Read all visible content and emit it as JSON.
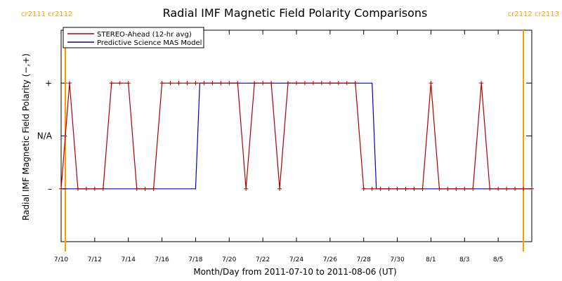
{
  "chart_data": {
    "type": "line",
    "title": "Radial IMF Magnetic Field Polarity Comparisons",
    "xlabel": "Month/Day from 2011-07-10 to 2011-08-06 (UT)",
    "ylabel": "Radial IMF Magnetic Field Polarity (−,+)",
    "x_range": [
      "2011-07-10",
      "2011-08-06"
    ],
    "x_ticks": [
      {
        "date": "2011-07-10",
        "label": "7/10"
      },
      {
        "date": "2011-07-12",
        "label": "7/12"
      },
      {
        "date": "2011-07-14",
        "label": "7/14"
      },
      {
        "date": "2011-07-16",
        "label": "7/16"
      },
      {
        "date": "2011-07-18",
        "label": "7/18"
      },
      {
        "date": "2011-07-20",
        "label": "7/20"
      },
      {
        "date": "2011-07-22",
        "label": "7/22"
      },
      {
        "date": "2011-07-24",
        "label": "7/24"
      },
      {
        "date": "2011-07-26",
        "label": "7/26"
      },
      {
        "date": "2011-07-28",
        "label": "7/28"
      },
      {
        "date": "2011-07-30",
        "label": "7/30"
      },
      {
        "date": "2011-08-01",
        "label": "8/1"
      },
      {
        "date": "2011-08-03",
        "label": "8/3"
      },
      {
        "date": "2011-08-05",
        "label": "8/5"
      }
    ],
    "y_ticks": [
      {
        "value": 1,
        "label": "+"
      },
      {
        "value": 0,
        "label": "N/A"
      },
      {
        "value": -1,
        "label": "–"
      }
    ],
    "y_range": [
      -2,
      2
    ],
    "carrington_markers": [
      {
        "date": "2011-07-10T06:00",
        "label": "cr2111 cr2112",
        "position": "left"
      },
      {
        "date": "2011-08-06T12:00",
        "label": "cr2112 cr2113",
        "position": "right"
      }
    ],
    "legend": {
      "placement": "top-left"
    },
    "series": [
      {
        "name": "STEREO-Ahead (12-hr avg)",
        "color": "#b00000",
        "marker": "plus",
        "points": [
          [
            "2011-07-10T00:00",
            -1
          ],
          [
            "2011-07-10T12:00",
            1
          ],
          [
            "2011-07-11T00:00",
            -1
          ],
          [
            "2011-07-11T12:00",
            -1
          ],
          [
            "2011-07-12T00:00",
            -1
          ],
          [
            "2011-07-12T12:00",
            -1
          ],
          [
            "2011-07-13T00:00",
            1
          ],
          [
            "2011-07-13T12:00",
            1
          ],
          [
            "2011-07-14T00:00",
            1
          ],
          [
            "2011-07-14T12:00",
            -1
          ],
          [
            "2011-07-15T00:00",
            -1
          ],
          [
            "2011-07-15T12:00",
            -1
          ],
          [
            "2011-07-16T00:00",
            1
          ],
          [
            "2011-07-16T12:00",
            1
          ],
          [
            "2011-07-17T00:00",
            1
          ],
          [
            "2011-07-17T12:00",
            1
          ],
          [
            "2011-07-18T00:00",
            1
          ],
          [
            "2011-07-18T12:00",
            1
          ],
          [
            "2011-07-19T00:00",
            1
          ],
          [
            "2011-07-19T12:00",
            1
          ],
          [
            "2011-07-20T00:00",
            1
          ],
          [
            "2011-07-20T12:00",
            1
          ],
          [
            "2011-07-21T00:00",
            -1
          ],
          [
            "2011-07-21T12:00",
            1
          ],
          [
            "2011-07-22T00:00",
            1
          ],
          [
            "2011-07-22T12:00",
            1
          ],
          [
            "2011-07-23T00:00",
            -1
          ],
          [
            "2011-07-23T12:00",
            1
          ],
          [
            "2011-07-24T00:00",
            1
          ],
          [
            "2011-07-24T12:00",
            1
          ],
          [
            "2011-07-25T00:00",
            1
          ],
          [
            "2011-07-25T12:00",
            1
          ],
          [
            "2011-07-26T00:00",
            1
          ],
          [
            "2011-07-26T12:00",
            1
          ],
          [
            "2011-07-27T00:00",
            1
          ],
          [
            "2011-07-27T12:00",
            1
          ],
          [
            "2011-07-28T00:00",
            -1
          ],
          [
            "2011-07-28T12:00",
            -1
          ],
          [
            "2011-07-29T00:00",
            -1
          ],
          [
            "2011-07-29T12:00",
            -1
          ],
          [
            "2011-07-30T00:00",
            -1
          ],
          [
            "2011-07-30T12:00",
            -1
          ],
          [
            "2011-07-31T00:00",
            -1
          ],
          [
            "2011-07-31T12:00",
            -1
          ],
          [
            "2011-08-01T00:00",
            1
          ],
          [
            "2011-08-01T12:00",
            -1
          ],
          [
            "2011-08-02T00:00",
            -1
          ],
          [
            "2011-08-02T12:00",
            -1
          ],
          [
            "2011-08-03T00:00",
            -1
          ],
          [
            "2011-08-03T12:00",
            -1
          ],
          [
            "2011-08-04T00:00",
            1
          ],
          [
            "2011-08-04T12:00",
            -1
          ],
          [
            "2011-08-05T00:00",
            -1
          ],
          [
            "2011-08-05T12:00",
            -1
          ],
          [
            "2011-08-06T00:00",
            -1
          ],
          [
            "2011-08-06T12:00",
            -1
          ],
          [
            "2011-08-07T00:00",
            -1
          ]
        ]
      },
      {
        "name": "Predictive Science MAS Model",
        "color": "#0000cc",
        "marker": "none",
        "points": [
          [
            "2011-07-10T00:00",
            -1
          ],
          [
            "2011-07-18T00:00",
            -1
          ],
          [
            "2011-07-18T06:00",
            1
          ],
          [
            "2011-07-28T12:00",
            1
          ],
          [
            "2011-07-28T18:00",
            -1
          ],
          [
            "2011-08-07T00:00",
            -1
          ]
        ]
      }
    ]
  }
}
